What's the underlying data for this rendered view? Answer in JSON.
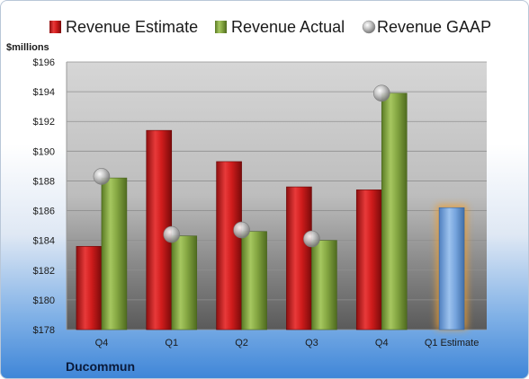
{
  "chart_data": {
    "type": "bar",
    "unit_label": "$millions",
    "company": "Ducommun",
    "categories": [
      "Q4",
      "Q1",
      "Q2",
      "Q3",
      "Q4",
      "Q1 Estimate"
    ],
    "series": [
      {
        "name": "Revenue Estimate",
        "values": [
          183.6,
          191.4,
          189.3,
          187.6,
          187.4,
          null
        ],
        "color": "#cc1f1f"
      },
      {
        "name": "Revenue Actual",
        "values": [
          188.2,
          184.3,
          184.6,
          184.0,
          193.9,
          null
        ],
        "color": "#7fa03a"
      },
      {
        "name": "Revenue GAAP",
        "values": [
          188.3,
          184.4,
          184.7,
          184.1,
          193.9,
          null
        ],
        "color": "#b0b0b0"
      }
    ],
    "estimate_bar": {
      "category": "Q1 Estimate",
      "value": 186.2,
      "color": "#6f9fd8",
      "glow": "#f0a030"
    },
    "ylim": [
      178,
      196
    ],
    "yticks": [
      "$178",
      "$180",
      "$182",
      "$184",
      "$186",
      "$188",
      "$190",
      "$192",
      "$194",
      "$196"
    ],
    "grid": true,
    "legend_position": "top"
  }
}
